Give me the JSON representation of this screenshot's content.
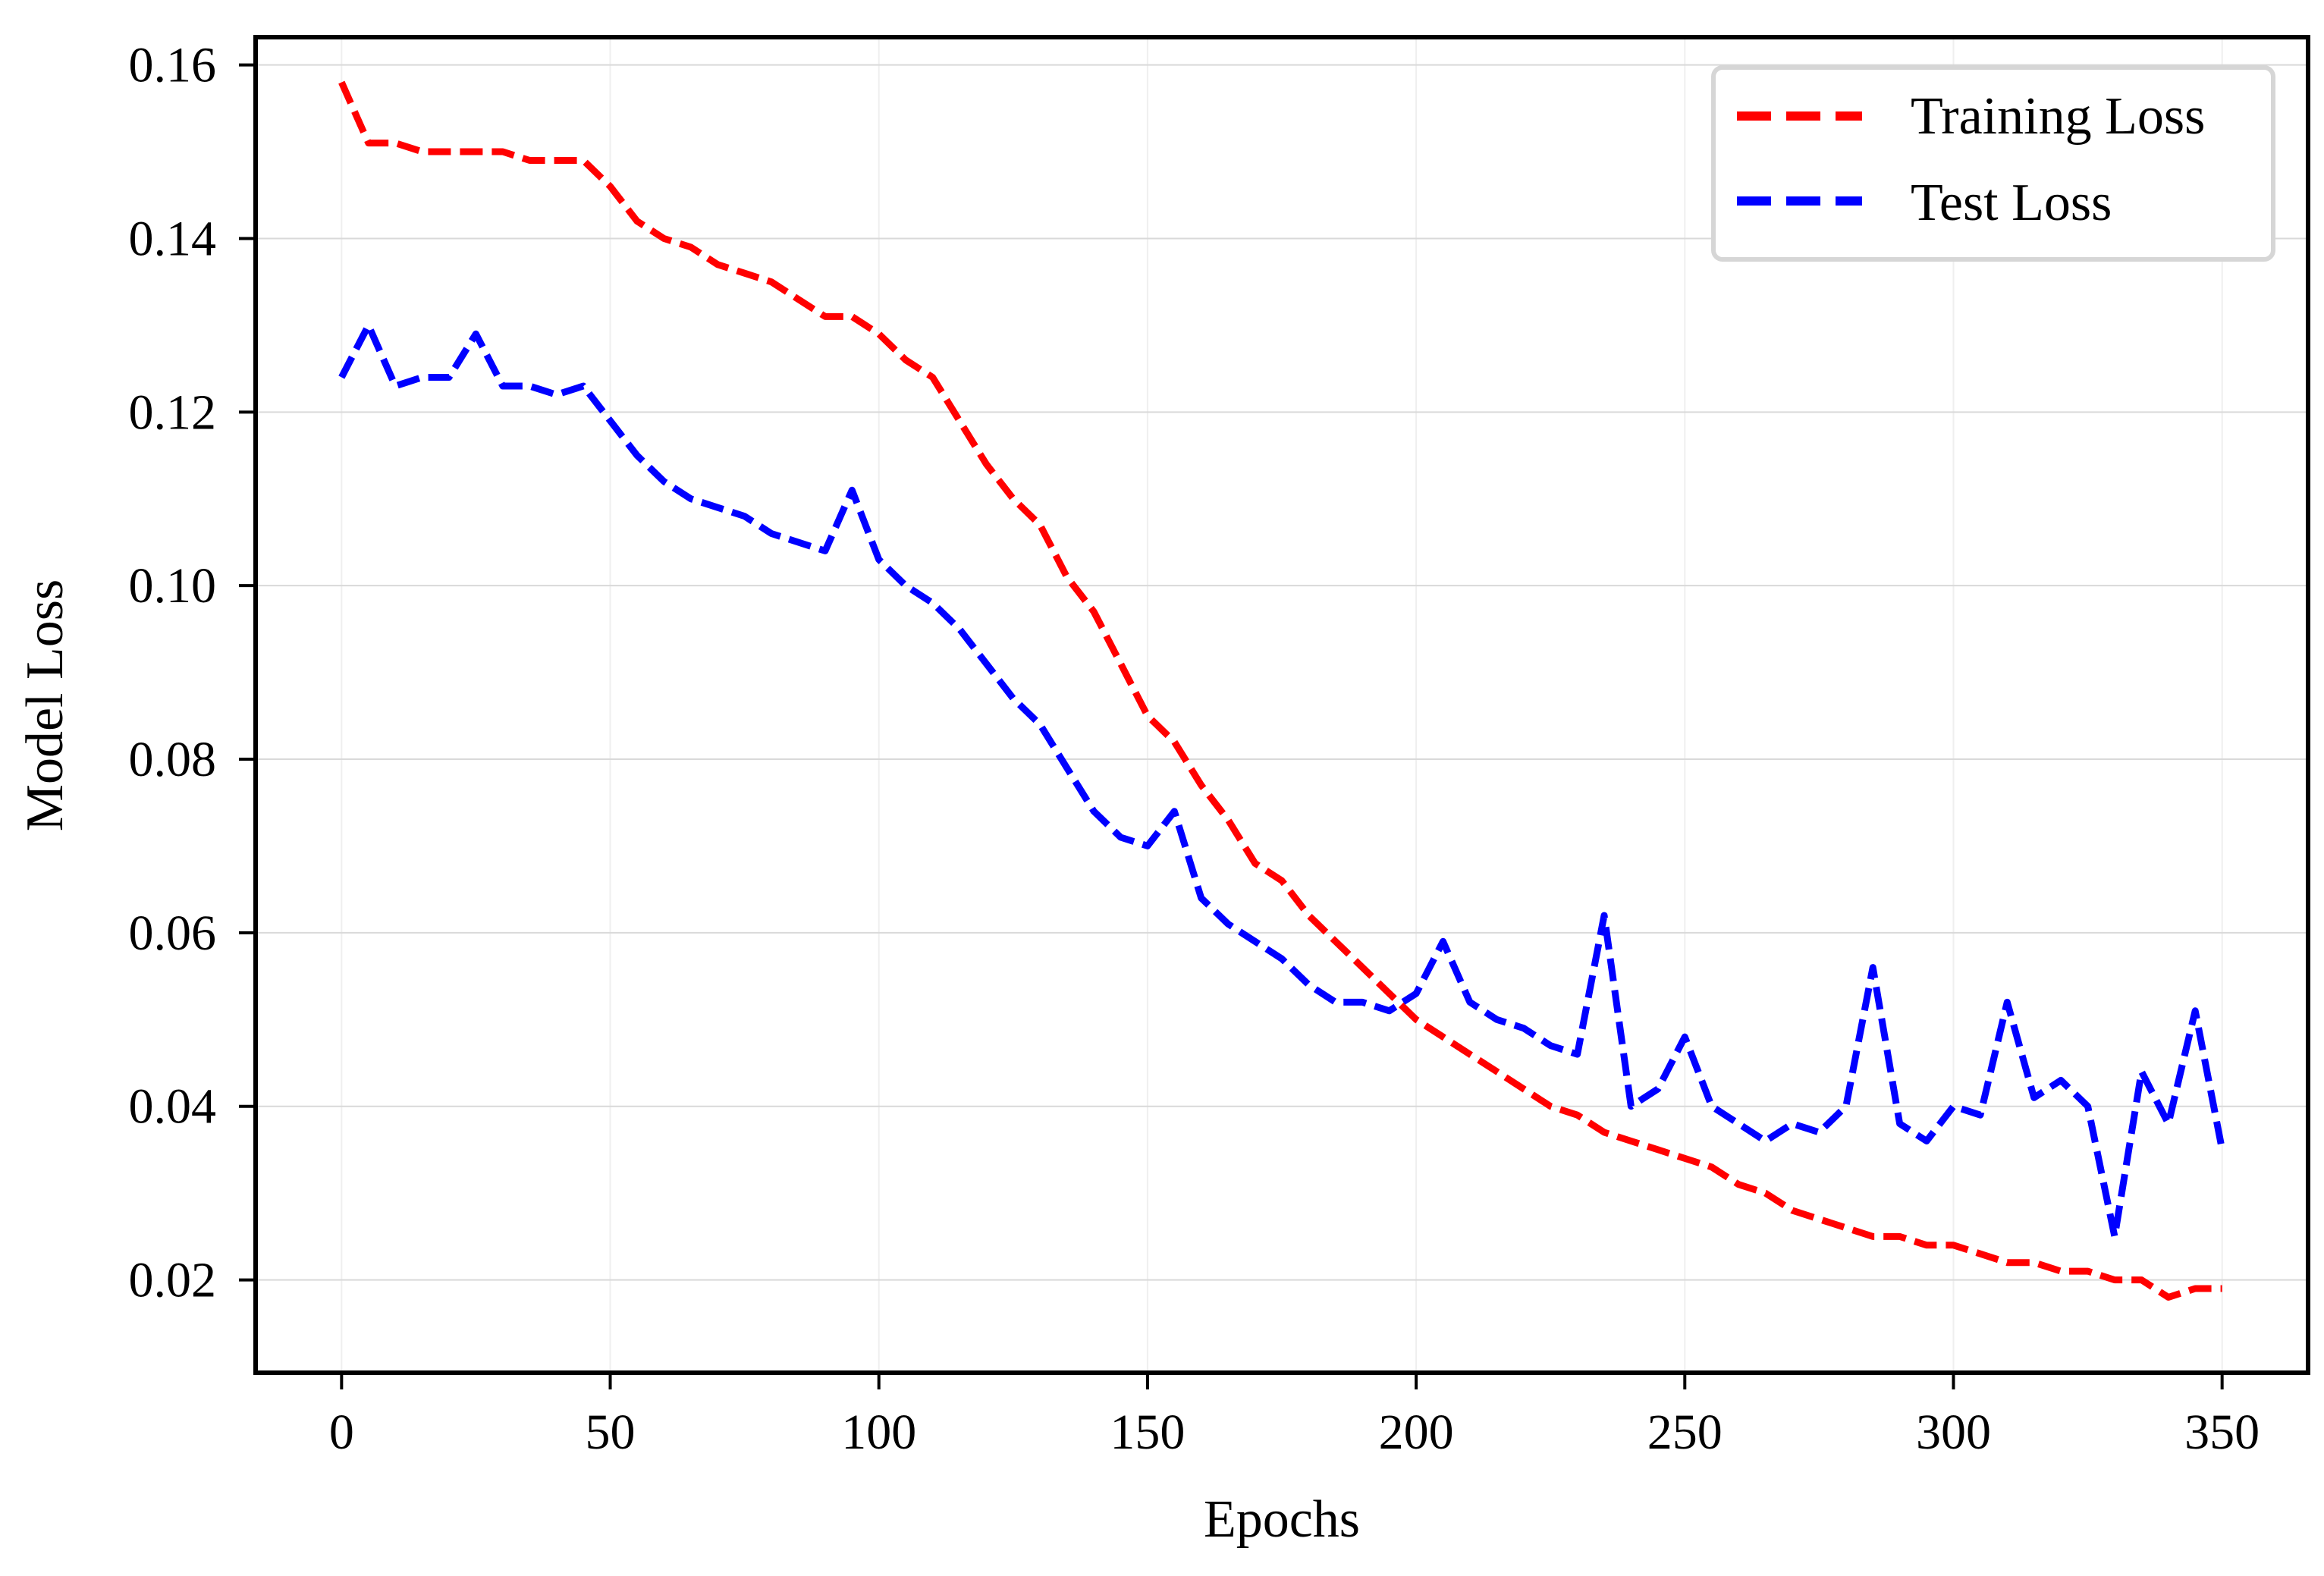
{
  "chart_data": {
    "type": "line",
    "title": "",
    "xlabel": "Epochs",
    "ylabel": "Model Loss",
    "xlim": [
      -16,
      366
    ],
    "ylim": [
      0.0093,
      0.1632
    ],
    "xticks": [
      0,
      50,
      100,
      150,
      200,
      250,
      300,
      350
    ],
    "xtick_labels": [
      "0",
      "50",
      "100",
      "150",
      "200",
      "250",
      "300",
      "350"
    ],
    "yticks": [
      0.02,
      0.04,
      0.06,
      0.08,
      0.1,
      0.12,
      0.14,
      0.16
    ],
    "ytick_labels": [
      "0.02",
      "0.04",
      "0.06",
      "0.08",
      "0.10",
      "0.12",
      "0.14",
      "0.16"
    ],
    "grid": true,
    "legend_position": "top-right",
    "x": [
      0,
      5,
      10,
      15,
      20,
      25,
      30,
      35,
      40,
      45,
      50,
      55,
      60,
      65,
      70,
      75,
      80,
      85,
      90,
      95,
      100,
      105,
      110,
      115,
      120,
      125,
      130,
      135,
      140,
      145,
      150,
      155,
      160,
      165,
      170,
      175,
      180,
      185,
      190,
      195,
      200,
      205,
      210,
      215,
      220,
      225,
      230,
      235,
      240,
      245,
      250,
      255,
      260,
      265,
      270,
      275,
      280,
      285,
      290,
      295,
      300,
      305,
      310,
      315,
      320,
      325,
      330,
      335,
      340,
      345,
      350
    ],
    "series": [
      {
        "name": "Training Loss",
        "color": "#ff0000",
        "values": [
          0.158,
          0.151,
          0.151,
          0.15,
          0.15,
          0.15,
          0.15,
          0.149,
          0.149,
          0.149,
          0.146,
          0.142,
          0.14,
          0.139,
          0.137,
          0.136,
          0.135,
          0.133,
          0.131,
          0.131,
          0.129,
          0.126,
          0.124,
          0.119,
          0.114,
          0.11,
          0.107,
          0.101,
          0.097,
          0.091,
          0.085,
          0.082,
          0.077,
          0.073,
          0.068,
          0.066,
          0.062,
          0.059,
          0.056,
          0.053,
          0.05,
          0.048,
          0.046,
          0.044,
          0.042,
          0.04,
          0.039,
          0.037,
          0.036,
          0.035,
          0.034,
          0.033,
          0.031,
          0.03,
          0.028,
          0.027,
          0.026,
          0.025,
          0.025,
          0.024,
          0.024,
          0.023,
          0.022,
          0.022,
          0.021,
          0.021,
          0.02,
          0.02,
          0.018,
          0.019,
          0.019
        ]
      },
      {
        "name": "Test Loss",
        "color": "#0000ff",
        "values": [
          0.124,
          0.13,
          0.123,
          0.124,
          0.124,
          0.129,
          0.123,
          0.123,
          0.122,
          0.123,
          0.119,
          0.115,
          0.112,
          0.11,
          0.109,
          0.108,
          0.106,
          0.105,
          0.104,
          0.111,
          0.103,
          0.1,
          0.098,
          0.095,
          0.091,
          0.087,
          0.084,
          0.079,
          0.074,
          0.071,
          0.07,
          0.074,
          0.064,
          0.061,
          0.059,
          0.057,
          0.054,
          0.052,
          0.052,
          0.051,
          0.053,
          0.059,
          0.052,
          0.05,
          0.049,
          0.047,
          0.046,
          0.062,
          0.04,
          0.042,
          0.048,
          0.04,
          0.038,
          0.036,
          0.038,
          0.037,
          0.04,
          0.056,
          0.038,
          0.036,
          0.04,
          0.039,
          0.052,
          0.041,
          0.043,
          0.04,
          0.025,
          0.044,
          0.038,
          0.051,
          0.035
        ]
      }
    ]
  }
}
